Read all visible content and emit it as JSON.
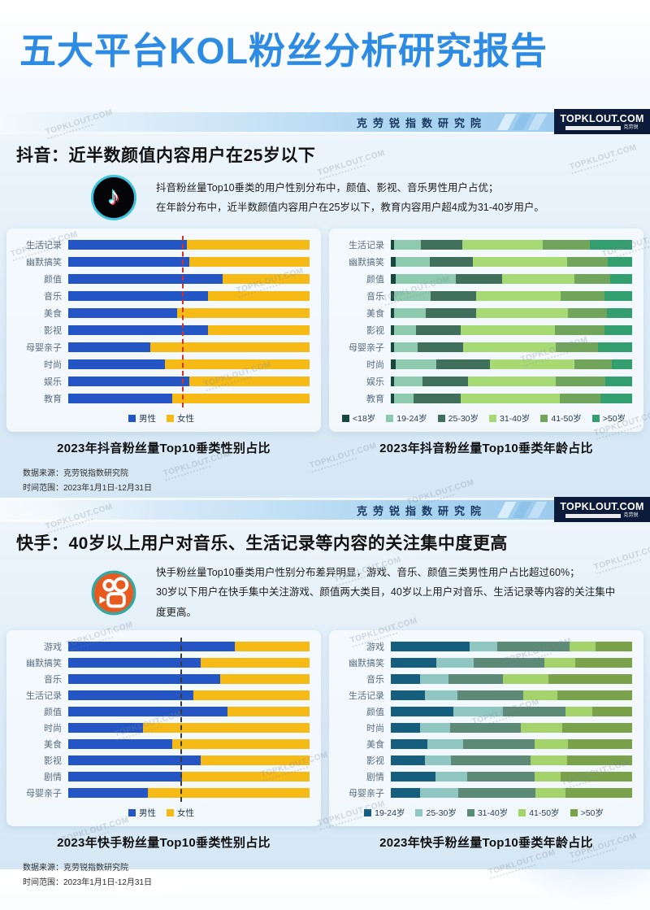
{
  "page_title": "五大平台KOL粉丝分析研究报告",
  "watermark_text": "TOPKLOUT.COM",
  "header_bar": {
    "institute": "克劳锐指数研究院",
    "logo": "TOPKLOUT.COM",
    "logo_sub": "克劳锐"
  },
  "colors": {
    "title_blue": "#2e8be4",
    "male_blue": "#2355c4",
    "female_yellow": "#f6ba17",
    "douyin_ref_line": "#d93025",
    "kuaishou_ref_line": "#3a3a3a",
    "logo_navy": "#0d1b3a"
  },
  "sections": [
    {
      "id": "douyin",
      "heading": "抖音：近半数颜值内容用户在25岁以下",
      "platform_icon": "douyin-icon",
      "description_lines": [
        "抖音粉丝量Top10垂类的用户性别分布中，颜值、影视、音乐男性用户占优；",
        "在年龄分布中，近半数颜值内容用户在25岁以下，教育内容用户超4成为31-40岁用户。"
      ],
      "source_lines": [
        "数据来源：克劳锐指数研究院",
        "时间范围：2023年1月1日-12月31日"
      ]
    },
    {
      "id": "kuaishou",
      "heading": "快手：40岁以上用户对音乐、生活记录等内容的关注集中度更高",
      "platform_icon": "kuaishou-icon",
      "description_lines": [
        "快手粉丝量Top10垂类用户性别分布差异明显，游戏、音乐、颜值三类男性用户占比超过60%；",
        "30岁以下用户在快手集中关注游戏、颜值两大类目，40岁以上用户对音乐、生活记录等内容的关注集中度更高。"
      ],
      "source_lines": [
        "数据来源：克劳锐指数研究院",
        "时间范围：2023年1月1日-12月31日"
      ]
    }
  ],
  "chart_data": [
    {
      "id": "douyin-gender",
      "type": "bar",
      "orientation": "horizontal",
      "stacked": true,
      "value_unit": "percent",
      "xlim": [
        0,
        100
      ],
      "legend_position": "bottom",
      "title": "2023年抖音粉丝量Top10垂类性别占比",
      "categories": [
        "生活记录",
        "幽默搞笑",
        "颜值",
        "音乐",
        "美食",
        "影视",
        "母婴亲子",
        "时尚",
        "娱乐",
        "教育"
      ],
      "series": [
        {
          "name": "男性",
          "color": "#2355c4",
          "values": [
            49,
            50,
            64,
            58,
            45,
            58,
            34,
            40,
            50,
            43
          ]
        },
        {
          "name": "女性",
          "color": "#f6ba17",
          "values": [
            51,
            50,
            36,
            42,
            55,
            42,
            66,
            60,
            50,
            57
          ]
        }
      ],
      "reference_line": {
        "value": 47,
        "style": "dashed",
        "color": "#d93025"
      }
    },
    {
      "id": "douyin-age",
      "type": "bar",
      "orientation": "horizontal",
      "stacked": true,
      "value_unit": "percent",
      "xlim": [
        0,
        100
      ],
      "legend_position": "bottom",
      "title": "2023年抖音粉丝量Top10垂类年龄占比",
      "categories": [
        "生活记录",
        "幽默搞笑",
        "颜值",
        "音乐",
        "美食",
        "影视",
        "母婴亲子",
        "时尚",
        "娱乐",
        "教育"
      ],
      "series": [
        {
          "name": "<18岁",
          "color": "#16483f",
          "values": [
            1.5,
            2,
            2,
            1.5,
            1.5,
            1.5,
            1.5,
            2,
            1.5,
            1.5
          ]
        },
        {
          "name": "19-24岁",
          "color": "#8ecbae",
          "values": [
            11,
            14,
            25,
            15,
            13,
            9,
            9.5,
            17,
            11.5,
            8
          ]
        },
        {
          "name": "25-30岁",
          "color": "#40705b",
          "values": [
            17,
            18,
            19,
            19,
            21,
            18.5,
            19,
            22,
            19,
            19.5
          ]
        },
        {
          "name": "31-40岁",
          "color": "#a7da74",
          "values": [
            33.5,
            39,
            30,
            35,
            38,
            39,
            38.5,
            35,
            36.5,
            41
          ]
        },
        {
          "name": "41-50岁",
          "color": "#72a55c",
          "values": [
            19.5,
            17,
            15,
            18,
            16,
            20.5,
            17.5,
            15.5,
            20.5,
            17
          ]
        },
        {
          "name": ">50岁",
          "color": "#339e6e",
          "values": [
            17.5,
            10,
            9,
            11.5,
            10.5,
            11.5,
            14,
            8.5,
            11,
            13
          ]
        }
      ]
    },
    {
      "id": "kuaishou-gender",
      "type": "bar",
      "orientation": "horizontal",
      "stacked": true,
      "value_unit": "percent",
      "xlim": [
        0,
        100
      ],
      "legend_position": "bottom",
      "title": "2023年快手粉丝量Top10垂类性别占比",
      "categories": [
        "游戏",
        "幽默搞笑",
        "音乐",
        "生活记录",
        "颜值",
        "时尚",
        "美食",
        "影视",
        "剧情",
        "母婴亲子"
      ],
      "series": [
        {
          "name": "男性",
          "color": "#2355c4",
          "values": [
            69,
            55,
            63,
            52,
            66,
            31,
            43,
            55,
            47,
            33
          ]
        },
        {
          "name": "女性",
          "color": "#f6ba17",
          "values": [
            31,
            45,
            37,
            48,
            34,
            69,
            57,
            45,
            53,
            67
          ]
        }
      ],
      "reference_line": {
        "value": 46.5,
        "style": "dashed",
        "color": "#3a3a3a"
      }
    },
    {
      "id": "kuaishou-age",
      "type": "bar",
      "orientation": "horizontal",
      "stacked": true,
      "value_unit": "percent",
      "xlim": [
        0,
        100
      ],
      "legend_position": "bottom",
      "title": "2023年快手粉丝量Top10垂类年龄占比",
      "categories": [
        "游戏",
        "幽默搞笑",
        "音乐",
        "生活记录",
        "颜值",
        "时尚",
        "美食",
        "影视",
        "剧情",
        "母婴亲子"
      ],
      "series": [
        {
          "name": "19-24岁",
          "color": "#155e7e",
          "values": [
            32.5,
            19,
            12,
            14,
            26,
            12,
            15,
            14,
            18.5,
            12
          ]
        },
        {
          "name": "25-30岁",
          "color": "#8fc6c1",
          "values": [
            11.5,
            15.5,
            12,
            13.5,
            20.5,
            12.5,
            15,
            11,
            13,
            16
          ]
        },
        {
          "name": "31-40岁",
          "color": "#5d8a77",
          "values": [
            30,
            29,
            22.5,
            27.5,
            26,
            29.5,
            29.5,
            33,
            28,
            32
          ]
        },
        {
          "name": "41-50岁",
          "color": "#a4d36c",
          "values": [
            11,
            13,
            19,
            14,
            11,
            17,
            14,
            15,
            11,
            12.5
          ]
        },
        {
          "name": ">50岁",
          "color": "#7aa24b",
          "values": [
            15,
            23.5,
            34.5,
            31,
            16.5,
            29,
            26.5,
            27,
            29.5,
            27.5
          ]
        }
      ]
    }
  ]
}
